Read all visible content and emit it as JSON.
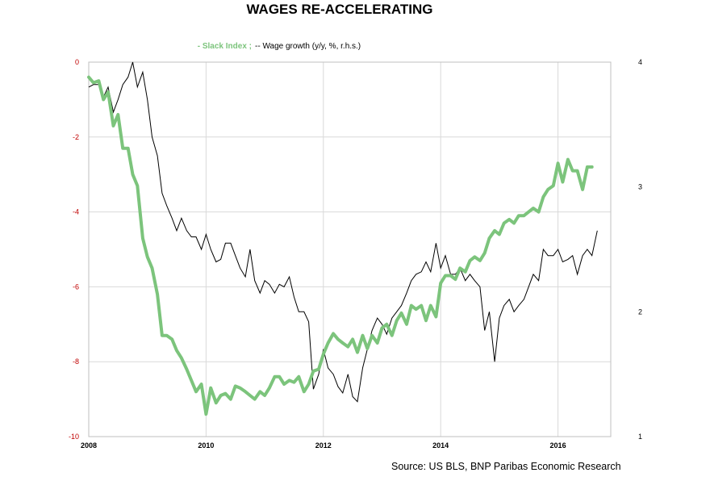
{
  "chart_data": {
    "type": "line",
    "title": "WAGES RE-ACCELERATING",
    "source": "Source: US BLS, BNP Paribas Economic Research",
    "legend": {
      "placement": "top-center",
      "entries": [
        {
          "label": "- Slack Index ;",
          "color": "#7cc47c"
        },
        {
          "label": "-- Wage growth (y/y, %, r.h.s.)",
          "color": "#000000"
        }
      ]
    },
    "x_axis": {
      "range": [
        2008,
        2016.9
      ],
      "ticks": [
        "2008",
        "2010",
        "2012",
        "2014",
        "2016"
      ]
    },
    "y_left": {
      "range": [
        -10,
        0
      ],
      "ticks": [
        "0",
        "-2",
        "-4",
        "-6",
        "-8",
        "-10"
      ]
    },
    "y_right": {
      "range": [
        1,
        4
      ],
      "ticks": [
        "4",
        "3",
        "2",
        "1"
      ]
    },
    "grid": true,
    "colors": {
      "slack": "#7cc47c",
      "wage": "#000000",
      "left_tick": "#c00000",
      "grid": "#d9d9d9"
    },
    "series": [
      {
        "name": "Slack Index",
        "axis": "left",
        "x": [
          2008.0,
          2008.08,
          2008.17,
          2008.25,
          2008.33,
          2008.42,
          2008.5,
          2008.58,
          2008.67,
          2008.75,
          2008.83,
          2008.92,
          2009.0,
          2009.08,
          2009.17,
          2009.25,
          2009.33,
          2009.42,
          2009.5,
          2009.58,
          2009.67,
          2009.75,
          2009.83,
          2009.92,
          2010.0,
          2010.08,
          2010.17,
          2010.25,
          2010.33,
          2010.42,
          2010.5,
          2010.58,
          2010.67,
          2010.75,
          2010.83,
          2010.92,
          2011.0,
          2011.08,
          2011.17,
          2011.25,
          2011.33,
          2011.42,
          2011.5,
          2011.58,
          2011.67,
          2011.75,
          2011.83,
          2011.92,
          2012.0,
          2012.08,
          2012.17,
          2012.25,
          2012.33,
          2012.42,
          2012.5,
          2012.58,
          2012.67,
          2012.75,
          2012.83,
          2012.92,
          2013.0,
          2013.08,
          2013.17,
          2013.25,
          2013.33,
          2013.42,
          2013.5,
          2013.58,
          2013.67,
          2013.75,
          2013.83,
          2013.92,
          2014.0,
          2014.08,
          2014.17,
          2014.25,
          2014.33,
          2014.42,
          2014.5,
          2014.58,
          2014.67,
          2014.75,
          2014.83,
          2014.92,
          2015.0,
          2015.08,
          2015.17,
          2015.25,
          2015.33,
          2015.42,
          2015.5,
          2015.58,
          2015.67,
          2015.75,
          2015.83,
          2015.92,
          2016.0,
          2016.08,
          2016.17,
          2016.25,
          2016.33,
          2016.42,
          2016.5,
          2016.58
        ],
        "values": [
          -0.4,
          -0.55,
          -0.5,
          -1.0,
          -0.8,
          -1.7,
          -1.4,
          -2.3,
          -2.3,
          -3.0,
          -3.3,
          -4.7,
          -5.2,
          -5.5,
          -6.2,
          -7.3,
          -7.3,
          -7.4,
          -7.7,
          -7.9,
          -8.2,
          -8.5,
          -8.8,
          -8.6,
          -9.4,
          -8.7,
          -9.1,
          -8.9,
          -8.85,
          -9.0,
          -8.65,
          -8.7,
          -8.8,
          -8.9,
          -9.0,
          -8.8,
          -8.9,
          -8.7,
          -8.4,
          -8.4,
          -8.6,
          -8.5,
          -8.55,
          -8.4,
          -8.8,
          -8.6,
          -8.25,
          -8.2,
          -7.8,
          -7.5,
          -7.25,
          -7.4,
          -7.5,
          -7.6,
          -7.4,
          -7.75,
          -7.3,
          -7.65,
          -7.3,
          -7.5,
          -7.1,
          -7.0,
          -7.3,
          -6.9,
          -6.7,
          -7.0,
          -6.5,
          -6.6,
          -6.5,
          -6.9,
          -6.5,
          -6.8,
          -5.9,
          -5.7,
          -5.7,
          -5.8,
          -5.5,
          -5.6,
          -5.3,
          -5.2,
          -5.3,
          -5.1,
          -4.7,
          -4.5,
          -4.6,
          -4.3,
          -4.2,
          -4.3,
          -4.1,
          -4.1,
          -4.0,
          -3.9,
          -4.0,
          -3.6,
          -3.4,
          -3.3,
          -2.7,
          -3.2,
          -2.6,
          -2.9,
          -2.9,
          -3.4,
          -2.8,
          -2.8
        ]
      },
      {
        "name": "Wage growth (y/y, %, r.h.s.)",
        "axis": "right",
        "x": [
          2008.0,
          2008.08,
          2008.17,
          2008.25,
          2008.33,
          2008.42,
          2008.5,
          2008.58,
          2008.67,
          2008.75,
          2008.83,
          2008.92,
          2009.0,
          2009.08,
          2009.17,
          2009.25,
          2009.33,
          2009.42,
          2009.5,
          2009.58,
          2009.67,
          2009.75,
          2009.83,
          2009.92,
          2010.0,
          2010.08,
          2010.17,
          2010.25,
          2010.33,
          2010.42,
          2010.5,
          2010.58,
          2010.67,
          2010.75,
          2010.83,
          2010.92,
          2011.0,
          2011.08,
          2011.17,
          2011.25,
          2011.33,
          2011.42,
          2011.5,
          2011.58,
          2011.67,
          2011.75,
          2011.83,
          2011.92,
          2012.0,
          2012.08,
          2012.17,
          2012.25,
          2012.33,
          2012.42,
          2012.5,
          2012.58,
          2012.67,
          2012.75,
          2012.83,
          2012.92,
          2013.0,
          2013.08,
          2013.17,
          2013.25,
          2013.33,
          2013.42,
          2013.5,
          2013.58,
          2013.67,
          2013.75,
          2013.83,
          2013.92,
          2014.0,
          2014.08,
          2014.17,
          2014.25,
          2014.33,
          2014.42,
          2014.5,
          2014.58,
          2014.67,
          2014.75,
          2014.83,
          2014.92,
          2015.0,
          2015.08,
          2015.17,
          2015.25,
          2015.33,
          2015.42,
          2015.5,
          2015.58,
          2015.67,
          2015.75,
          2015.83,
          2015.92,
          2016.0,
          2016.08,
          2016.17,
          2016.25,
          2016.33,
          2016.42,
          2016.5,
          2016.58,
          2016.67
        ],
        "values": [
          3.8,
          3.82,
          3.82,
          3.72,
          3.8,
          3.6,
          3.7,
          3.82,
          3.88,
          4.0,
          3.8,
          3.92,
          3.7,
          3.4,
          3.25,
          2.95,
          2.85,
          2.75,
          2.65,
          2.75,
          2.65,
          2.6,
          2.6,
          2.5,
          2.62,
          2.5,
          2.4,
          2.42,
          2.55,
          2.55,
          2.45,
          2.35,
          2.28,
          2.5,
          2.25,
          2.15,
          2.25,
          2.22,
          2.15,
          2.22,
          2.2,
          2.28,
          2.12,
          2.0,
          2.0,
          1.92,
          1.38,
          1.5,
          1.7,
          1.55,
          1.5,
          1.4,
          1.35,
          1.5,
          1.32,
          1.28,
          1.55,
          1.7,
          1.85,
          1.95,
          1.9,
          1.82,
          1.95,
          2.0,
          2.05,
          2.15,
          2.25,
          2.3,
          2.32,
          2.4,
          2.32,
          2.55,
          2.35,
          2.45,
          2.3,
          2.3,
          2.35,
          2.25,
          2.3,
          2.25,
          2.2,
          1.85,
          2.0,
          1.6,
          1.95,
          2.05,
          2.1,
          2.0,
          2.05,
          2.1,
          2.2,
          2.3,
          2.25,
          2.5,
          2.45,
          2.45,
          2.5,
          2.4,
          2.42,
          2.45,
          2.3,
          2.45,
          2.5,
          2.45,
          2.65
        ]
      }
    ]
  }
}
